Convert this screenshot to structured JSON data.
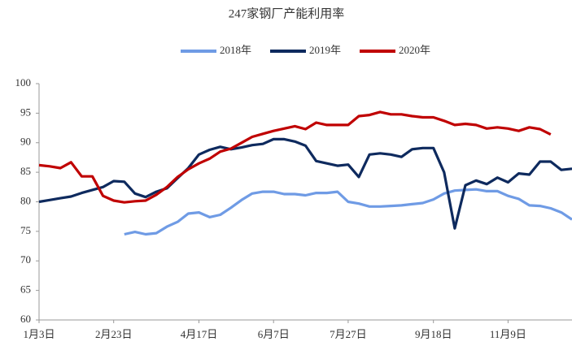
{
  "chart_data": {
    "type": "line",
    "title": "247家钢厂产能利用率",
    "categories": [
      "1月3日",
      null,
      null,
      null,
      null,
      null,
      null,
      "2月23日",
      null,
      null,
      null,
      null,
      null,
      null,
      null,
      "4月17日",
      null,
      null,
      null,
      null,
      null,
      null,
      "6月7日",
      null,
      null,
      null,
      null,
      null,
      null,
      "7月27日",
      null,
      null,
      null,
      null,
      null,
      null,
      null,
      "9月18日",
      null,
      null,
      null,
      null,
      null,
      null,
      "11月9日",
      null,
      null,
      null,
      null,
      null,
      null
    ],
    "series": [
      {
        "name": "2018年",
        "color": "#6f9be5",
        "values": [
          null,
          null,
          null,
          null,
          null,
          null,
          null,
          null,
          74.5,
          74.9,
          74.5,
          74.7,
          75.8,
          76.6,
          78.0,
          78.2,
          77.4,
          77.8,
          79.0,
          80.3,
          81.4,
          81.7,
          81.7,
          81.3,
          81.3,
          81.1,
          81.5,
          81.5,
          81.7,
          80.0,
          79.7,
          79.2,
          79.2,
          79.3,
          79.4,
          79.6,
          79.8,
          80.4,
          81.4,
          81.9,
          82.0,
          82.1,
          81.8,
          81.8,
          81.0,
          80.5,
          79.4,
          79.3,
          78.9,
          78.2,
          77.0
        ]
      },
      {
        "name": "2019年",
        "color": "#0e2a5e",
        "values": [
          80.0,
          80.3,
          80.6,
          80.9,
          81.5,
          82.0,
          82.5,
          83.5,
          83.4,
          81.4,
          80.8,
          81.7,
          82.3,
          84.0,
          85.7,
          88.0,
          88.8,
          89.3,
          88.9,
          89.2,
          89.6,
          89.8,
          90.6,
          90.6,
          90.2,
          89.5,
          86.9,
          86.5,
          86.1,
          86.3,
          84.2,
          88.0,
          88.2,
          88.0,
          87.6,
          88.9,
          89.1,
          89.1,
          85.0,
          75.5,
          82.8,
          83.6,
          83.0,
          84.1,
          83.3,
          84.8,
          84.6,
          86.8,
          86.8,
          85.4,
          85.6
        ]
      },
      {
        "name": "2020年",
        "color": "#c00000",
        "values": [
          86.2,
          86.0,
          85.7,
          86.7,
          84.3,
          84.3,
          81.0,
          80.2,
          79.9,
          80.1,
          80.2,
          81.2,
          82.5,
          84.2,
          85.5,
          86.5,
          87.3,
          88.5,
          89.0,
          90.0,
          91.0,
          91.5,
          92.0,
          92.4,
          92.8,
          92.3,
          93.4,
          93.0,
          93.0,
          93.0,
          94.5,
          94.7,
          95.2,
          94.8,
          94.8,
          94.5,
          94.3,
          94.3,
          93.7,
          93.0,
          93.2,
          93.0,
          92.4,
          92.6,
          92.4,
          92.0,
          92.6,
          92.3,
          91.4,
          null,
          null
        ]
      }
    ],
    "ylim": [
      60,
      100
    ],
    "yticks": [
      60,
      65,
      70,
      75,
      80,
      85,
      90,
      95,
      100
    ],
    "legend": "top"
  }
}
